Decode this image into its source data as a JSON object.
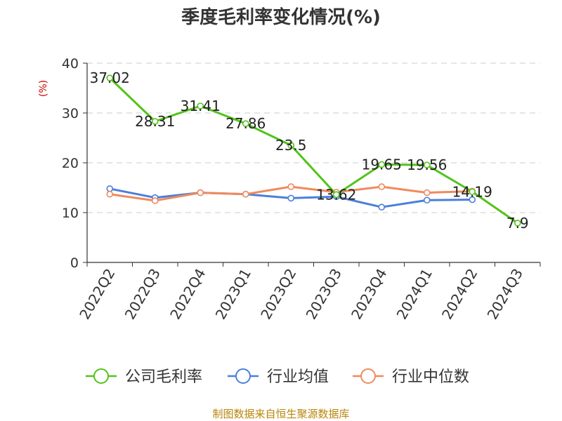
{
  "chart_data": {
    "type": "line",
    "title": "季度毛利率变化情况(%)",
    "ylabel": "(%)",
    "xlabel": "",
    "ylim": [
      0,
      40
    ],
    "yticks": [
      0,
      10,
      20,
      30,
      40
    ],
    "grid": true,
    "legend_position": "bottom",
    "categories": [
      "2022Q2",
      "2022Q3",
      "2022Q4",
      "2023Q1",
      "2023Q2",
      "2023Q3",
      "2023Q4",
      "2024Q1",
      "2024Q2",
      "2024Q3"
    ],
    "series": [
      {
        "name": "公司毛利率",
        "color": "#52c41a",
        "values": [
          37.02,
          28.31,
          31.41,
          27.86,
          23.5,
          13.62,
          19.65,
          19.56,
          14.19,
          7.9
        ],
        "labels": [
          "37.02",
          "28.31",
          "31.41",
          "27.86",
          "23.5",
          "13.62",
          "19.65",
          "19.56",
          "14.19",
          "7.9"
        ]
      },
      {
        "name": "行业均值",
        "color": "#4a7fdb",
        "values": [
          14.8,
          13.0,
          14.0,
          13.7,
          12.9,
          13.2,
          11.1,
          12.5,
          12.6,
          null
        ]
      },
      {
        "name": "行业中位数",
        "color": "#f08a5d",
        "values": [
          13.7,
          12.4,
          14.0,
          13.7,
          15.2,
          14.1,
          15.2,
          14.0,
          14.3,
          null
        ]
      }
    ]
  },
  "source": "制图数据来自恒生聚源数据库"
}
